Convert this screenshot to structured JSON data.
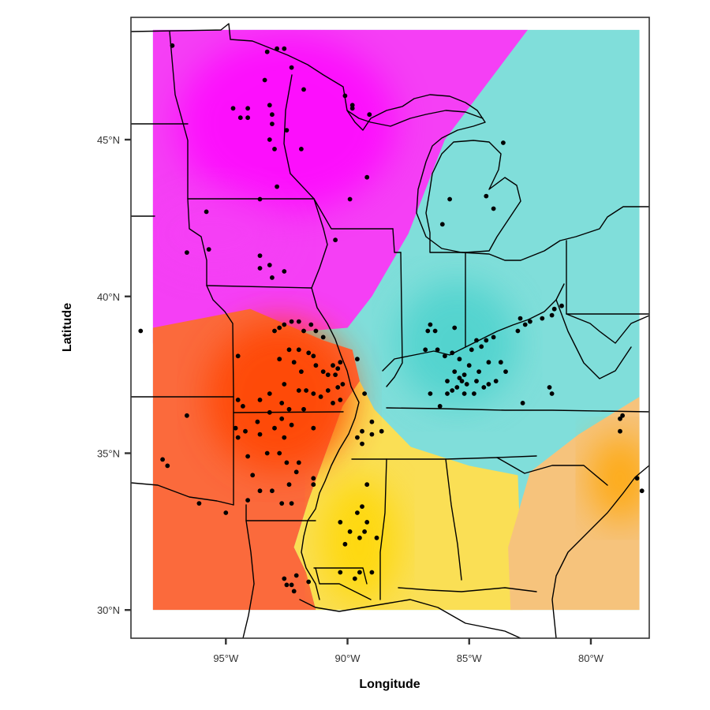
{
  "map": {
    "x_axis": {
      "title": "Longitude",
      "ticks": [
        {
          "lon": -95,
          "label": "95°W"
        },
        {
          "lon": -90,
          "label": "90°W"
        },
        {
          "lon": -85,
          "label": "85°W"
        },
        {
          "lon": -80,
          "label": "80°W"
        }
      ]
    },
    "y_axis": {
      "title": "Latitude",
      "ticks": [
        {
          "lat": 30,
          "label": "30°N"
        },
        {
          "lat": 35,
          "label": "35°N"
        },
        {
          "lat": 40,
          "label": "40°N"
        },
        {
          "lat": 45,
          "label": "45°N"
        }
      ]
    },
    "extent": {
      "lon": [
        -98.9,
        -77.6
      ],
      "lat": [
        29.1,
        48.9
      ]
    },
    "raster_extent": {
      "lon": [
        -98,
        -78
      ],
      "lat": [
        30,
        48.5
      ]
    },
    "region_colors": {
      "north_magenta": "#f53ff5",
      "north_magenta_core": "#ff00ff",
      "northeast_cyan": "#80deda",
      "cyan_core": "#48d1cc",
      "southwest_orange_red": "#fb6a3c",
      "orange_red_core": "#ff4500",
      "south_yellow": "#fadf55",
      "yellow_core": "#ffd700",
      "southeast_orange": "#f6c37c",
      "orange_core": "#ffa500"
    },
    "point_color": "#000000",
    "points": [
      [
        -97.2,
        48.0
      ],
      [
        -93.3,
        47.8
      ],
      [
        -92.9,
        47.9
      ],
      [
        -92.6,
        47.9
      ],
      [
        -92.3,
        47.3
      ],
      [
        -93.4,
        46.9
      ],
      [
        -91.8,
        46.6
      ],
      [
        -94.7,
        46.0
      ],
      [
        -94.1,
        46.0
      ],
      [
        -93.2,
        46.1
      ],
      [
        -94.4,
        45.7
      ],
      [
        -94.1,
        45.7
      ],
      [
        -93.1,
        45.8
      ],
      [
        -93.1,
        45.5
      ],
      [
        -92.5,
        45.3
      ],
      [
        -93.2,
        45.0
      ],
      [
        -91.9,
        44.7
      ],
      [
        -93.0,
        44.7
      ],
      [
        -90.1,
        46.4
      ],
      [
        -89.8,
        46.1
      ],
      [
        -89.8,
        46.0
      ],
      [
        -89.1,
        45.8
      ],
      [
        -89.2,
        43.8
      ],
      [
        -92.9,
        43.5
      ],
      [
        -93.6,
        43.1
      ],
      [
        -89.9,
        43.1
      ],
      [
        -95.8,
        42.7
      ],
      [
        -90.5,
        41.8
      ],
      [
        -96.6,
        41.4
      ],
      [
        -95.7,
        41.5
      ],
      [
        -93.6,
        41.3
      ],
      [
        -93.6,
        40.9
      ],
      [
        -93.2,
        41.0
      ],
      [
        -92.6,
        40.8
      ],
      [
        -93.1,
        40.6
      ],
      [
        -98.5,
        38.9
      ],
      [
        -94.5,
        38.1
      ],
      [
        -93.0,
        38.9
      ],
      [
        -92.8,
        39.0
      ],
      [
        -92.6,
        39.1
      ],
      [
        -92.3,
        39.2
      ],
      [
        -92.0,
        39.2
      ],
      [
        -91.5,
        39.1
      ],
      [
        -91.8,
        38.9
      ],
      [
        -91.3,
        38.9
      ],
      [
        -91.0,
        38.7
      ],
      [
        -92.4,
        38.3
      ],
      [
        -92.0,
        38.3
      ],
      [
        -91.6,
        38.2
      ],
      [
        -92.8,
        38.0
      ],
      [
        -92.2,
        37.9
      ],
      [
        -91.4,
        38.1
      ],
      [
        -90.6,
        37.8
      ],
      [
        -90.8,
        37.5
      ],
      [
        -90.4,
        37.7
      ],
      [
        -90.3,
        37.9
      ],
      [
        -90.5,
        37.5
      ],
      [
        -91.9,
        37.6
      ],
      [
        -91.3,
        37.8
      ],
      [
        -91.0,
        37.6
      ],
      [
        -90.2,
        37.2
      ],
      [
        -89.6,
        38.0
      ],
      [
        -89.3,
        36.9
      ],
      [
        -92.6,
        37.2
      ],
      [
        -92.0,
        37.0
      ],
      [
        -91.7,
        37.0
      ],
      [
        -91.4,
        36.9
      ],
      [
        -91.1,
        36.8
      ],
      [
        -90.8,
        37.0
      ],
      [
        -90.4,
        37.1
      ],
      [
        -90.3,
        36.7
      ],
      [
        -90.6,
        36.6
      ],
      [
        -93.6,
        36.7
      ],
      [
        -93.2,
        36.9
      ],
      [
        -92.7,
        36.6
      ],
      [
        -92.4,
        36.4
      ],
      [
        -94.5,
        36.7
      ],
      [
        -94.3,
        36.5
      ],
      [
        -93.7,
        36.0
      ],
      [
        -93.2,
        36.3
      ],
      [
        -92.7,
        36.1
      ],
      [
        -91.8,
        36.4
      ],
      [
        -91.4,
        35.8
      ],
      [
        -94.6,
        35.8
      ],
      [
        -94.2,
        35.7
      ],
      [
        -93.6,
        35.6
      ],
      [
        -93.0,
        35.8
      ],
      [
        -92.6,
        35.5
      ],
      [
        -92.3,
        35.9
      ],
      [
        -94.5,
        35.5
      ],
      [
        -96.6,
        36.2
      ],
      [
        -94.1,
        34.9
      ],
      [
        -93.3,
        35.0
      ],
      [
        -92.8,
        35.0
      ],
      [
        -92.5,
        34.7
      ],
      [
        -92.0,
        34.7
      ],
      [
        -92.1,
        34.4
      ],
      [
        -91.4,
        34.2
      ],
      [
        -93.9,
        34.3
      ],
      [
        -93.6,
        33.8
      ],
      [
        -93.1,
        33.8
      ],
      [
        -92.4,
        34.0
      ],
      [
        -91.4,
        34.0
      ],
      [
        -92.3,
        33.4
      ],
      [
        -92.7,
        33.4
      ],
      [
        -94.1,
        33.5
      ],
      [
        -95.0,
        33.1
      ],
      [
        -96.1,
        33.4
      ],
      [
        -97.6,
        34.8
      ],
      [
        -97.4,
        34.6
      ],
      [
        -89.0,
        36.0
      ],
      [
        -88.6,
        35.7
      ],
      [
        -89.0,
        35.6
      ],
      [
        -89.4,
        35.7
      ],
      [
        -89.4,
        35.3
      ],
      [
        -89.6,
        35.5
      ],
      [
        -89.2,
        34.0
      ],
      [
        -89.4,
        33.3
      ],
      [
        -89.6,
        33.1
      ],
      [
        -90.3,
        32.8
      ],
      [
        -89.9,
        32.5
      ],
      [
        -89.3,
        32.5
      ],
      [
        -89.2,
        32.8
      ],
      [
        -88.8,
        32.3
      ],
      [
        -89.5,
        32.3
      ],
      [
        -90.1,
        32.1
      ],
      [
        -89.5,
        31.2
      ],
      [
        -89.0,
        31.2
      ],
      [
        -90.3,
        31.2
      ],
      [
        -89.7,
        31.0
      ],
      [
        -92.3,
        30.8
      ],
      [
        -92.1,
        31.1
      ],
      [
        -92.6,
        31.0
      ],
      [
        -91.6,
        30.9
      ],
      [
        -92.2,
        30.6
      ],
      [
        -92.5,
        30.8
      ],
      [
        -86.4,
        38.9
      ],
      [
        -86.3,
        38.3
      ],
      [
        -86.8,
        38.3
      ],
      [
        -86.0,
        38.1
      ],
      [
        -85.7,
        38.2
      ],
      [
        -85.4,
        38.0
      ],
      [
        -84.9,
        38.3
      ],
      [
        -84.5,
        38.4
      ],
      [
        -84.7,
        38.6
      ],
      [
        -84.0,
        38.7
      ],
      [
        -84.3,
        38.6
      ],
      [
        -85.0,
        37.8
      ],
      [
        -85.6,
        37.6
      ],
      [
        -85.2,
        37.5
      ],
      [
        -84.6,
        37.6
      ],
      [
        -84.2,
        37.9
      ],
      [
        -85.3,
        37.3
      ],
      [
        -85.9,
        37.3
      ],
      [
        -85.5,
        37.1
      ],
      [
        -85.1,
        37.2
      ],
      [
        -84.7,
        37.3
      ],
      [
        -84.4,
        37.1
      ],
      [
        -84.8,
        36.9
      ],
      [
        -85.2,
        36.9
      ],
      [
        -85.7,
        37.0
      ],
      [
        -86.6,
        36.9
      ],
      [
        -86.2,
        36.5
      ],
      [
        -84.2,
        37.2
      ],
      [
        -83.9,
        37.3
      ],
      [
        -83.5,
        37.6
      ],
      [
        -83.7,
        37.9
      ],
      [
        -83.0,
        38.9
      ],
      [
        -82.7,
        39.1
      ],
      [
        -82.5,
        39.2
      ],
      [
        -82.0,
        39.3
      ],
      [
        -81.6,
        39.4
      ],
      [
        -81.5,
        39.6
      ],
      [
        -81.2,
        39.7
      ],
      [
        -82.8,
        36.6
      ],
      [
        -81.6,
        36.9
      ],
      [
        -81.7,
        37.1
      ],
      [
        -78.7,
        36.2
      ],
      [
        -78.8,
        36.1
      ],
      [
        -78.8,
        35.7
      ],
      [
        -78.1,
        34.2
      ],
      [
        -77.9,
        33.8
      ],
      [
        -86.7,
        38.9
      ],
      [
        -86.6,
        39.1
      ],
      [
        -85.6,
        39.0
      ],
      [
        -84.3,
        43.2
      ],
      [
        -84.0,
        42.8
      ],
      [
        -85.8,
        43.1
      ],
      [
        -86.1,
        42.3
      ],
      [
        -83.6,
        44.9
      ],
      [
        -82.9,
        39.3
      ],
      [
        -85.4,
        37.4
      ],
      [
        -85.9,
        36.9
      ]
    ]
  }
}
